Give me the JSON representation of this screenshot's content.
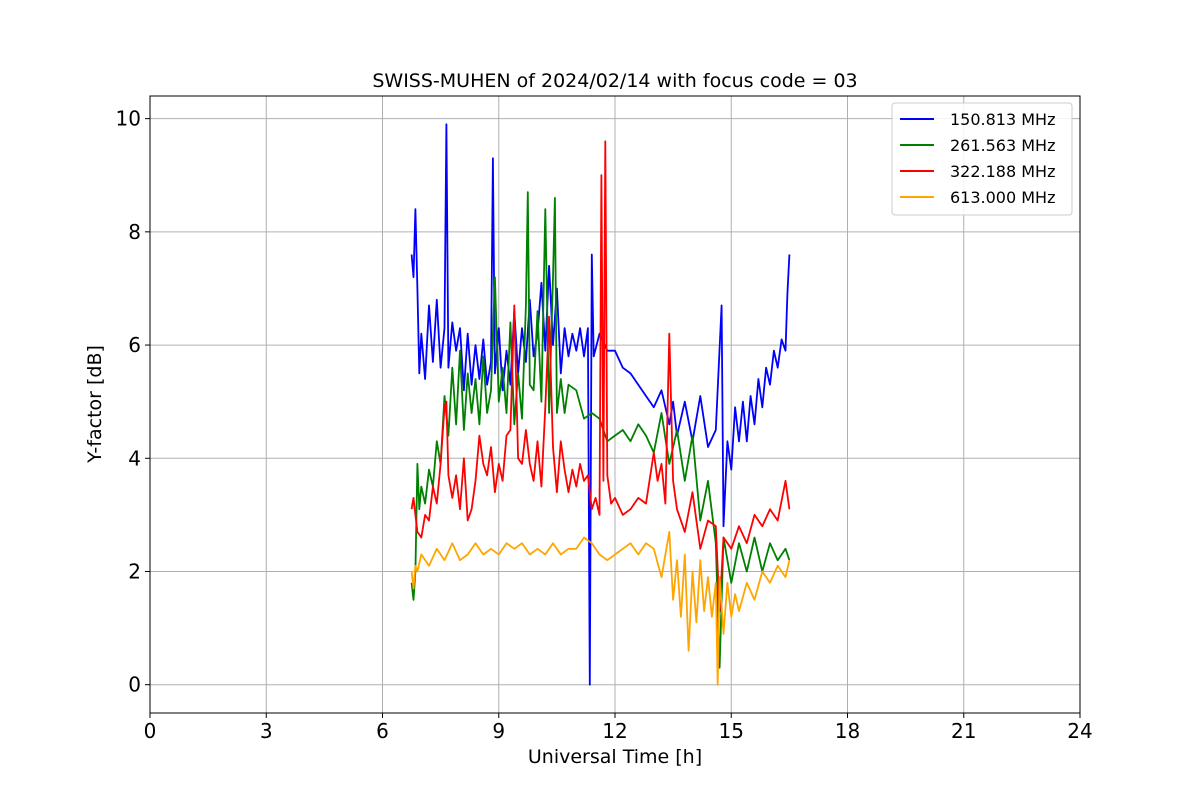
{
  "chart_data": {
    "type": "line",
    "title": "SWISS-MUHEN of 2024/02/14 with focus code = 03",
    "xlabel": "Universal Time [h]",
    "ylabel": "Y-factor [dB]",
    "xlim": [
      0,
      24
    ],
    "ylim": [
      -0.5,
      10.4
    ],
    "xticks": [
      0,
      3,
      6,
      9,
      12,
      15,
      18,
      21,
      24
    ],
    "yticks": [
      0,
      2,
      4,
      6,
      8,
      10
    ],
    "grid": true,
    "legend_position": "top-right",
    "series": [
      {
        "name": "150.813 MHz",
        "color": "#0000ff",
        "points": [
          [
            6.75,
            7.6
          ],
          [
            6.8,
            7.2
          ],
          [
            6.85,
            8.4
          ],
          [
            6.9,
            7.0
          ],
          [
            6.95,
            5.5
          ],
          [
            7.0,
            6.2
          ],
          [
            7.1,
            5.4
          ],
          [
            7.2,
            6.7
          ],
          [
            7.3,
            5.7
          ],
          [
            7.4,
            6.8
          ],
          [
            7.5,
            5.6
          ],
          [
            7.6,
            6.3
          ],
          [
            7.65,
            9.9
          ],
          [
            7.7,
            5.6
          ],
          [
            7.8,
            6.4
          ],
          [
            7.9,
            5.9
          ],
          [
            8.0,
            6.3
          ],
          [
            8.1,
            5.2
          ],
          [
            8.2,
            6.2
          ],
          [
            8.3,
            5.3
          ],
          [
            8.4,
            6.0
          ],
          [
            8.5,
            5.4
          ],
          [
            8.6,
            6.1
          ],
          [
            8.7,
            5.3
          ],
          [
            8.8,
            5.7
          ],
          [
            8.85,
            9.3
          ],
          [
            8.9,
            5.5
          ],
          [
            9.0,
            6.3
          ],
          [
            9.1,
            5.2
          ],
          [
            9.2,
            5.9
          ],
          [
            9.3,
            5.3
          ],
          [
            9.4,
            6.6
          ],
          [
            9.5,
            5.5
          ],
          [
            9.6,
            6.3
          ],
          [
            9.7,
            5.7
          ],
          [
            9.8,
            6.8
          ],
          [
            9.9,
            5.8
          ],
          [
            10.0,
            6.2
          ],
          [
            10.1,
            7.1
          ],
          [
            10.2,
            5.9
          ],
          [
            10.3,
            7.4
          ],
          [
            10.4,
            6.0
          ],
          [
            10.5,
            7.0
          ],
          [
            10.6,
            5.5
          ],
          [
            10.7,
            6.3
          ],
          [
            10.8,
            5.8
          ],
          [
            10.9,
            6.2
          ],
          [
            11.0,
            5.9
          ],
          [
            11.1,
            6.3
          ],
          [
            11.2,
            5.8
          ],
          [
            11.3,
            6.3
          ],
          [
            11.35,
            0.0
          ],
          [
            11.4,
            7.6
          ],
          [
            11.45,
            5.8
          ],
          [
            11.6,
            6.2
          ],
          [
            11.8,
            5.9
          ],
          [
            12.0,
            5.9
          ],
          [
            12.2,
            5.6
          ],
          [
            12.4,
            5.5
          ],
          [
            12.6,
            5.3
          ],
          [
            12.8,
            5.1
          ],
          [
            13.0,
            4.9
          ],
          [
            13.2,
            5.2
          ],
          [
            13.4,
            4.6
          ],
          [
            13.5,
            5.0
          ],
          [
            13.6,
            4.4
          ],
          [
            13.8,
            5.0
          ],
          [
            14.0,
            4.3
          ],
          [
            14.2,
            5.1
          ],
          [
            14.4,
            4.2
          ],
          [
            14.6,
            4.5
          ],
          [
            14.75,
            6.7
          ],
          [
            14.8,
            2.8
          ],
          [
            14.9,
            4.3
          ],
          [
            15.0,
            3.8
          ],
          [
            15.1,
            4.9
          ],
          [
            15.2,
            4.3
          ],
          [
            15.3,
            5.0
          ],
          [
            15.4,
            4.3
          ],
          [
            15.5,
            5.1
          ],
          [
            15.6,
            4.6
          ],
          [
            15.7,
            5.4
          ],
          [
            15.8,
            4.9
          ],
          [
            15.9,
            5.6
          ],
          [
            16.0,
            5.3
          ],
          [
            16.1,
            5.9
          ],
          [
            16.2,
            5.6
          ],
          [
            16.3,
            6.1
          ],
          [
            16.4,
            5.9
          ],
          [
            16.45,
            6.9
          ],
          [
            16.5,
            7.6
          ]
        ]
      },
      {
        "name": "261.563 MHz",
        "color": "#008000",
        "points": [
          [
            6.75,
            1.8
          ],
          [
            6.8,
            1.5
          ],
          [
            6.85,
            2.0
          ],
          [
            6.9,
            3.9
          ],
          [
            6.95,
            3.1
          ],
          [
            7.0,
            3.5
          ],
          [
            7.1,
            3.2
          ],
          [
            7.2,
            3.8
          ],
          [
            7.3,
            3.5
          ],
          [
            7.4,
            4.3
          ],
          [
            7.5,
            3.9
          ],
          [
            7.6,
            5.1
          ],
          [
            7.7,
            4.4
          ],
          [
            7.8,
            5.6
          ],
          [
            7.9,
            4.6
          ],
          [
            8.0,
            5.9
          ],
          [
            8.1,
            4.5
          ],
          [
            8.2,
            5.5
          ],
          [
            8.3,
            4.8
          ],
          [
            8.4,
            5.4
          ],
          [
            8.5,
            4.6
          ],
          [
            8.6,
            5.8
          ],
          [
            8.7,
            4.8
          ],
          [
            8.8,
            5.2
          ],
          [
            8.9,
            7.2
          ],
          [
            9.0,
            5.0
          ],
          [
            9.1,
            5.6
          ],
          [
            9.2,
            4.8
          ],
          [
            9.3,
            6.4
          ],
          [
            9.4,
            4.6
          ],
          [
            9.5,
            5.5
          ],
          [
            9.6,
            4.7
          ],
          [
            9.7,
            6.7
          ],
          [
            9.75,
            8.7
          ],
          [
            9.8,
            5.3
          ],
          [
            9.9,
            5.2
          ],
          [
            10.0,
            6.6
          ],
          [
            10.1,
            5.0
          ],
          [
            10.2,
            8.4
          ],
          [
            10.3,
            4.8
          ],
          [
            10.4,
            7.2
          ],
          [
            10.45,
            8.6
          ],
          [
            10.5,
            4.8
          ],
          [
            10.6,
            5.4
          ],
          [
            10.7,
            4.8
          ],
          [
            10.8,
            5.3
          ],
          [
            11.0,
            5.2
          ],
          [
            11.2,
            4.7
          ],
          [
            11.4,
            4.8
          ],
          [
            11.6,
            4.7
          ],
          [
            11.8,
            4.3
          ],
          [
            12.0,
            4.4
          ],
          [
            12.2,
            4.5
          ],
          [
            12.4,
            4.3
          ],
          [
            12.6,
            4.6
          ],
          [
            12.8,
            4.4
          ],
          [
            13.0,
            4.1
          ],
          [
            13.2,
            4.8
          ],
          [
            13.4,
            3.9
          ],
          [
            13.6,
            4.5
          ],
          [
            13.8,
            3.6
          ],
          [
            14.0,
            4.4
          ],
          [
            14.2,
            2.9
          ],
          [
            14.4,
            3.6
          ],
          [
            14.6,
            2.5
          ],
          [
            14.7,
            0.3
          ],
          [
            14.8,
            2.6
          ],
          [
            15.0,
            1.8
          ],
          [
            15.2,
            2.5
          ],
          [
            15.4,
            2.0
          ],
          [
            15.6,
            2.6
          ],
          [
            15.8,
            2.0
          ],
          [
            16.0,
            2.5
          ],
          [
            16.2,
            2.2
          ],
          [
            16.4,
            2.4
          ],
          [
            16.5,
            2.2
          ]
        ]
      },
      {
        "name": "322.188 MHz",
        "color": "#ff0000",
        "points": [
          [
            6.75,
            3.1
          ],
          [
            6.8,
            3.3
          ],
          [
            6.85,
            3.0
          ],
          [
            6.9,
            2.7
          ],
          [
            7.0,
            2.6
          ],
          [
            7.1,
            3.0
          ],
          [
            7.2,
            2.9
          ],
          [
            7.3,
            3.5
          ],
          [
            7.4,
            3.2
          ],
          [
            7.5,
            3.9
          ],
          [
            7.6,
            4.9
          ],
          [
            7.65,
            5.0
          ],
          [
            7.7,
            3.7
          ],
          [
            7.8,
            3.3
          ],
          [
            7.9,
            3.7
          ],
          [
            8.0,
            3.1
          ],
          [
            8.1,
            4.0
          ],
          [
            8.2,
            2.9
          ],
          [
            8.3,
            3.1
          ],
          [
            8.4,
            3.6
          ],
          [
            8.5,
            4.4
          ],
          [
            8.6,
            3.9
          ],
          [
            8.7,
            3.7
          ],
          [
            8.8,
            4.2
          ],
          [
            8.9,
            3.4
          ],
          [
            9.0,
            3.9
          ],
          [
            9.1,
            3.6
          ],
          [
            9.2,
            4.4
          ],
          [
            9.3,
            4.5
          ],
          [
            9.4,
            6.7
          ],
          [
            9.5,
            4.0
          ],
          [
            9.6,
            3.9
          ],
          [
            9.7,
            4.5
          ],
          [
            9.8,
            3.9
          ],
          [
            9.9,
            3.6
          ],
          [
            10.0,
            4.3
          ],
          [
            10.1,
            3.5
          ],
          [
            10.2,
            4.9
          ],
          [
            10.3,
            6.5
          ],
          [
            10.4,
            4.2
          ],
          [
            10.5,
            3.4
          ],
          [
            10.6,
            4.3
          ],
          [
            10.7,
            3.8
          ],
          [
            10.8,
            3.4
          ],
          [
            10.9,
            3.8
          ],
          [
            11.0,
            3.5
          ],
          [
            11.1,
            3.9
          ],
          [
            11.2,
            3.6
          ],
          [
            11.3,
            3.7
          ],
          [
            11.4,
            3.1
          ],
          [
            11.5,
            3.3
          ],
          [
            11.6,
            3.0
          ],
          [
            11.65,
            9.0
          ],
          [
            11.7,
            3.6
          ],
          [
            11.75,
            9.6
          ],
          [
            11.8,
            3.7
          ],
          [
            11.9,
            3.2
          ],
          [
            12.0,
            3.3
          ],
          [
            12.2,
            3.0
          ],
          [
            12.4,
            3.1
          ],
          [
            12.6,
            3.3
          ],
          [
            12.8,
            3.2
          ],
          [
            13.0,
            4.1
          ],
          [
            13.1,
            3.6
          ],
          [
            13.2,
            3.9
          ],
          [
            13.3,
            3.2
          ],
          [
            13.4,
            6.2
          ],
          [
            13.5,
            3.6
          ],
          [
            13.6,
            3.1
          ],
          [
            13.8,
            2.7
          ],
          [
            14.0,
            3.4
          ],
          [
            14.2,
            2.4
          ],
          [
            14.4,
            2.9
          ],
          [
            14.6,
            2.8
          ],
          [
            14.7,
            1.3
          ],
          [
            14.8,
            2.6
          ],
          [
            15.0,
            2.4
          ],
          [
            15.2,
            2.8
          ],
          [
            15.4,
            2.5
          ],
          [
            15.6,
            3.0
          ],
          [
            15.8,
            2.8
          ],
          [
            16.0,
            3.1
          ],
          [
            16.2,
            2.9
          ],
          [
            16.4,
            3.6
          ],
          [
            16.5,
            3.1
          ]
        ]
      },
      {
        "name": "613.000 MHz",
        "color": "#ffa500",
        "points": [
          [
            6.75,
            2.0
          ],
          [
            6.8,
            1.7
          ],
          [
            6.85,
            2.1
          ],
          [
            6.9,
            2.0
          ],
          [
            7.0,
            2.3
          ],
          [
            7.2,
            2.1
          ],
          [
            7.4,
            2.4
          ],
          [
            7.6,
            2.2
          ],
          [
            7.8,
            2.5
          ],
          [
            8.0,
            2.2
          ],
          [
            8.2,
            2.3
          ],
          [
            8.4,
            2.5
          ],
          [
            8.6,
            2.3
          ],
          [
            8.8,
            2.4
          ],
          [
            9.0,
            2.3
          ],
          [
            9.2,
            2.5
          ],
          [
            9.4,
            2.4
          ],
          [
            9.6,
            2.5
          ],
          [
            9.8,
            2.3
          ],
          [
            10.0,
            2.4
          ],
          [
            10.2,
            2.3
          ],
          [
            10.4,
            2.5
          ],
          [
            10.6,
            2.3
          ],
          [
            10.8,
            2.4
          ],
          [
            11.0,
            2.4
          ],
          [
            11.2,
            2.6
          ],
          [
            11.4,
            2.5
          ],
          [
            11.6,
            2.3
          ],
          [
            11.8,
            2.2
          ],
          [
            12.0,
            2.3
          ],
          [
            12.2,
            2.4
          ],
          [
            12.4,
            2.5
          ],
          [
            12.6,
            2.3
          ],
          [
            12.8,
            2.5
          ],
          [
            13.0,
            2.4
          ],
          [
            13.2,
            1.9
          ],
          [
            13.4,
            2.7
          ],
          [
            13.5,
            1.5
          ],
          [
            13.6,
            2.2
          ],
          [
            13.7,
            1.2
          ],
          [
            13.8,
            2.3
          ],
          [
            13.9,
            0.6
          ],
          [
            14.0,
            2.0
          ],
          [
            14.1,
            1.1
          ],
          [
            14.2,
            2.2
          ],
          [
            14.3,
            1.3
          ],
          [
            14.4,
            1.9
          ],
          [
            14.5,
            1.2
          ],
          [
            14.6,
            1.8
          ],
          [
            14.65,
            0.0
          ],
          [
            14.7,
            1.9
          ],
          [
            14.8,
            0.9
          ],
          [
            14.9,
            1.8
          ],
          [
            15.0,
            1.2
          ],
          [
            15.1,
            1.6
          ],
          [
            15.2,
            1.3
          ],
          [
            15.4,
            1.8
          ],
          [
            15.6,
            1.5
          ],
          [
            15.8,
            2.0
          ],
          [
            16.0,
            1.8
          ],
          [
            16.2,
            2.1
          ],
          [
            16.4,
            1.9
          ],
          [
            16.5,
            2.2
          ]
        ]
      }
    ]
  }
}
